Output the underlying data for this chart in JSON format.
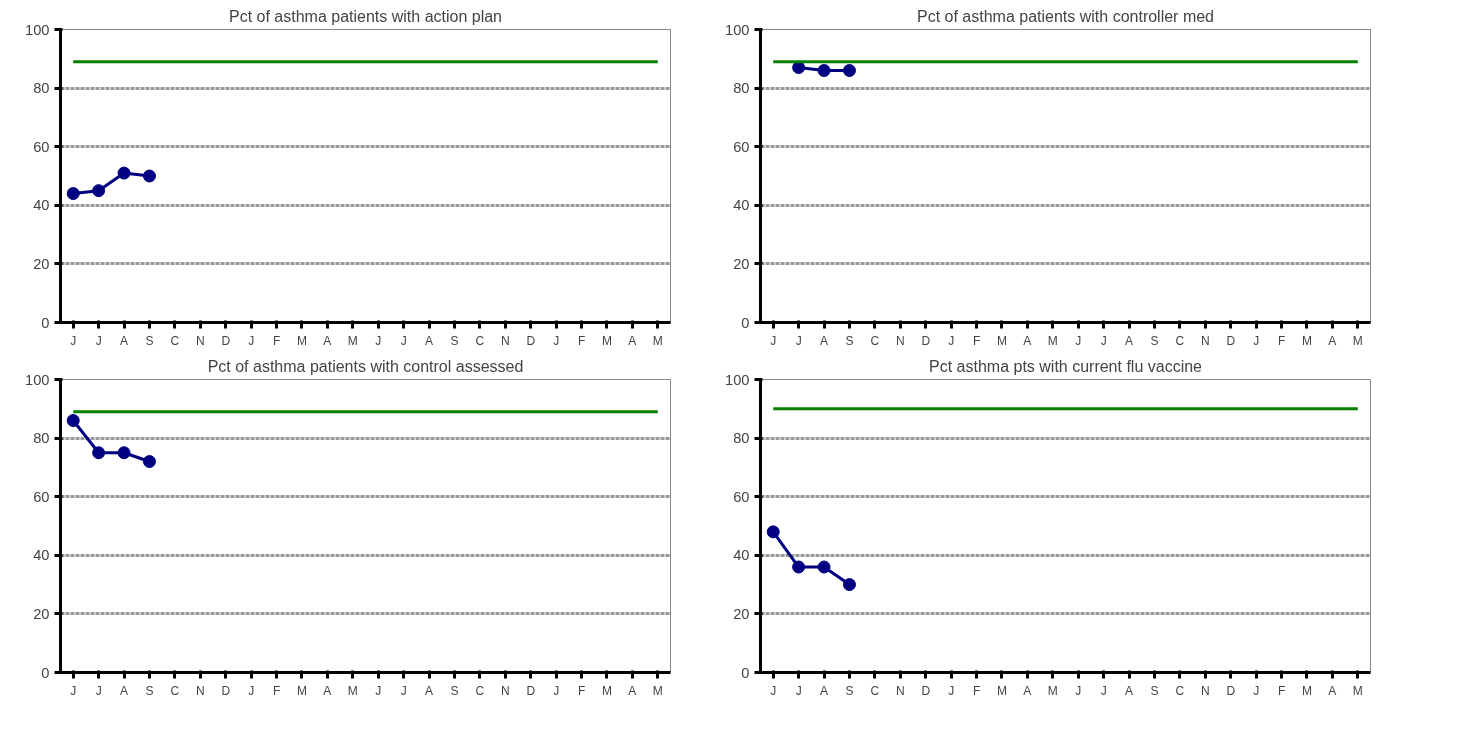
{
  "chart_data": [
    {
      "type": "line",
      "title": "Pct of asthma patients with action plan",
      "categories": [
        "J",
        "J",
        "A",
        "S",
        "C",
        "N",
        "D",
        "J",
        "F",
        "M",
        "A",
        "M",
        "J",
        "J",
        "A",
        "S",
        "C",
        "N",
        "D",
        "J",
        "F",
        "M",
        "A",
        "M"
      ],
      "ylim": [
        0,
        100
      ],
      "yticks": [
        0,
        20,
        40,
        60,
        80,
        100
      ],
      "grid": "y",
      "series": [
        {
          "color": "#000080",
          "marker": "circle",
          "values": [
            44,
            45,
            51,
            50,
            null,
            null,
            null,
            null,
            null,
            null,
            null,
            null,
            null,
            null,
            null,
            null,
            null,
            null,
            null,
            null,
            null,
            null,
            null,
            null
          ]
        },
        {
          "color": "#008000",
          "marker": "none",
          "values": [
            89,
            89,
            89,
            89,
            89,
            89,
            89,
            89,
            89,
            89,
            89,
            89,
            89,
            89,
            89,
            89,
            89,
            89,
            89,
            89,
            89,
            89,
            89,
            89
          ]
        }
      ]
    },
    {
      "type": "line",
      "title": "Pct of asthma patients with controller med",
      "categories": [
        "J",
        "J",
        "A",
        "S",
        "C",
        "N",
        "D",
        "J",
        "F",
        "M",
        "A",
        "M",
        "J",
        "J",
        "A",
        "S",
        "C",
        "N",
        "D",
        "J",
        "F",
        "M",
        "A",
        "M"
      ],
      "ylim": [
        0,
        100
      ],
      "yticks": [
        0,
        20,
        40,
        60,
        80,
        100
      ],
      "grid": "y",
      "series": [
        {
          "color": "#000080",
          "marker": "circle",
          "values": [
            null,
            87,
            86,
            86,
            null,
            null,
            null,
            null,
            null,
            null,
            null,
            null,
            null,
            null,
            null,
            null,
            null,
            null,
            null,
            null,
            null,
            null,
            null,
            null
          ]
        },
        {
          "color": "#008000",
          "marker": "none",
          "values": [
            89,
            89,
            89,
            89,
            89,
            89,
            89,
            89,
            89,
            89,
            89,
            89,
            89,
            89,
            89,
            89,
            89,
            89,
            89,
            89,
            89,
            89,
            89,
            89
          ]
        }
      ]
    },
    {
      "type": "line",
      "title": "Pct of asthma patients with control assessed",
      "categories": [
        "J",
        "J",
        "A",
        "S",
        "C",
        "N",
        "D",
        "J",
        "F",
        "M",
        "A",
        "M",
        "J",
        "J",
        "A",
        "S",
        "C",
        "N",
        "D",
        "J",
        "F",
        "M",
        "A",
        "M"
      ],
      "ylim": [
        0,
        100
      ],
      "yticks": [
        0,
        20,
        40,
        60,
        80,
        100
      ],
      "grid": "y",
      "series": [
        {
          "color": "#000080",
          "marker": "circle",
          "values": [
            86,
            75,
            75,
            72,
            null,
            null,
            null,
            null,
            null,
            null,
            null,
            null,
            null,
            null,
            null,
            null,
            null,
            null,
            null,
            null,
            null,
            null,
            null,
            null
          ]
        },
        {
          "color": "#008000",
          "marker": "none",
          "values": [
            89,
            89,
            89,
            89,
            89,
            89,
            89,
            89,
            89,
            89,
            89,
            89,
            89,
            89,
            89,
            89,
            89,
            89,
            89,
            89,
            89,
            89,
            89,
            89
          ]
        }
      ]
    },
    {
      "type": "line",
      "title": "Pct asthma pts with current flu vaccine",
      "categories": [
        "J",
        "J",
        "A",
        "S",
        "C",
        "N",
        "D",
        "J",
        "F",
        "M",
        "A",
        "M",
        "J",
        "J",
        "A",
        "S",
        "C",
        "N",
        "D",
        "J",
        "F",
        "M",
        "A",
        "M"
      ],
      "ylim": [
        0,
        100
      ],
      "yticks": [
        0,
        20,
        40,
        60,
        80,
        100
      ],
      "grid": "y",
      "series": [
        {
          "color": "#000080",
          "marker": "circle",
          "values": [
            48,
            36,
            36,
            30,
            null,
            null,
            null,
            null,
            null,
            null,
            null,
            null,
            null,
            null,
            null,
            null,
            null,
            null,
            null,
            null,
            null,
            null,
            null,
            null
          ]
        },
        {
          "color": "#008000",
          "marker": "none",
          "values": [
            90,
            90,
            90,
            90,
            90,
            90,
            90,
            90,
            90,
            90,
            90,
            90,
            90,
            90,
            90,
            90,
            90,
            90,
            90,
            90,
            90,
            90,
            90,
            90
          ]
        }
      ]
    }
  ]
}
